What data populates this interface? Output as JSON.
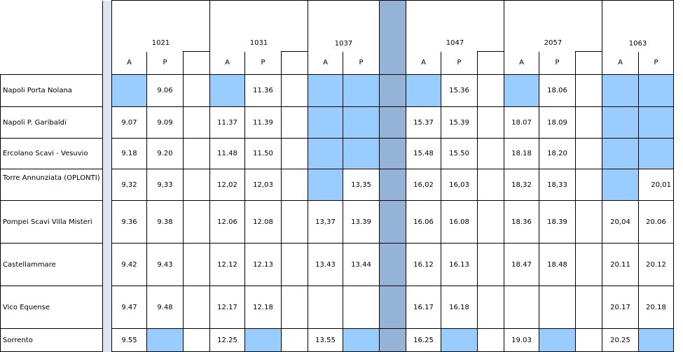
{
  "trains": [
    "1021",
    "1031",
    "1037",
    "1047",
    "2057",
    "1063"
  ],
  "columns": {
    "arrival": "A",
    "departure": "P"
  },
  "rows": [
    {
      "station": "Napoli Porta Nolana",
      "times": [
        [
          "",
          "9.06"
        ],
        [
          "",
          "11.36"
        ],
        [
          "",
          ""
        ],
        [
          "",
          "15.36"
        ],
        [
          "",
          "18.06"
        ],
        [
          "",
          ""
        ]
      ],
      "blue": [
        [
          1,
          0
        ],
        [
          1,
          0
        ],
        [
          1,
          1
        ],
        [
          1,
          0
        ],
        [
          1,
          0
        ],
        [
          1,
          1
        ]
      ]
    },
    {
      "station": "Napoli P. Garibaldi",
      "times": [
        [
          "9.07",
          "9.09"
        ],
        [
          "11.37",
          "11.39"
        ],
        [
          "",
          ""
        ],
        [
          "15.37",
          "15.39"
        ],
        [
          "18.07",
          "18.09"
        ],
        [
          "",
          ""
        ]
      ],
      "blue": [
        [
          0,
          0
        ],
        [
          0,
          0
        ],
        [
          1,
          1
        ],
        [
          0,
          0
        ],
        [
          0,
          0
        ],
        [
          1,
          1
        ]
      ]
    },
    {
      "station": "Ercolano Scavi - Vesuvio",
      "times": [
        [
          "9.18",
          "9.20"
        ],
        [
          "11.48",
          "11.50"
        ],
        [
          "",
          ""
        ],
        [
          "15.48",
          "15.50"
        ],
        [
          "18.18",
          "18.20"
        ],
        [
          "",
          ""
        ]
      ],
      "blue": [
        [
          0,
          0
        ],
        [
          0,
          0
        ],
        [
          1,
          1
        ],
        [
          0,
          0
        ],
        [
          0,
          0
        ],
        [
          1,
          1
        ]
      ]
    },
    {
      "station": "Torre Annunziata (OPLONTI)",
      "times": [
        [
          "9,32",
          "9,33"
        ],
        [
          "12,02",
          "12,03"
        ],
        [
          "",
          "13,35"
        ],
        [
          "16,02",
          "16,03"
        ],
        [
          "18,32",
          "18,33"
        ],
        [
          "",
          "20,01"
        ]
      ],
      "blue": [
        [
          0,
          0
        ],
        [
          0,
          0
        ],
        [
          1,
          0
        ],
        [
          0,
          0
        ],
        [
          0,
          0
        ],
        [
          1,
          0
        ]
      ]
    },
    {
      "station": "Pompei Scavi Villa Misteri",
      "times": [
        [
          "9.36",
          "9.38"
        ],
        [
          "12.06",
          "12.08"
        ],
        [
          "13,37",
          "13.39"
        ],
        [
          "16.06",
          "16.08"
        ],
        [
          "18.36",
          "18.39"
        ],
        [
          "20,04",
          "20.06"
        ]
      ],
      "blue": [
        [
          0,
          0
        ],
        [
          0,
          0
        ],
        [
          0,
          0
        ],
        [
          0,
          0
        ],
        [
          0,
          0
        ],
        [
          0,
          0
        ]
      ]
    },
    {
      "station": "Castellammare",
      "times": [
        [
          "9.42",
          "9.43"
        ],
        [
          "12.12",
          "12.13"
        ],
        [
          "13.43",
          "13.44"
        ],
        [
          "16.12",
          "16.13"
        ],
        [
          "18.47",
          "18.48"
        ],
        [
          "20.11",
          "20.12"
        ]
      ],
      "blue": [
        [
          0,
          0
        ],
        [
          0,
          0
        ],
        [
          0,
          0
        ],
        [
          0,
          0
        ],
        [
          0,
          0
        ],
        [
          0,
          0
        ]
      ]
    },
    {
      "station": "Vico Equense",
      "times": [
        [
          "9.47",
          "9.48"
        ],
        [
          "12.17",
          "12.18"
        ],
        [
          "",
          ""
        ],
        [
          "16.17",
          "16.18"
        ],
        [
          "",
          ""
        ],
        [
          "20.17",
          "20.18"
        ]
      ],
      "blue": [
        [
          0,
          0
        ],
        [
          0,
          0
        ],
        [
          0,
          0
        ],
        [
          0,
          0
        ],
        [
          0,
          0
        ],
        [
          0,
          0
        ]
      ]
    },
    {
      "station": "Sorrento",
      "times": [
        [
          "9.55",
          ""
        ],
        [
          "12.25",
          ""
        ],
        [
          "13.55",
          ""
        ],
        [
          "16.25",
          ""
        ],
        [
          "19.03",
          ""
        ],
        [
          "20.25",
          ""
        ]
      ],
      "blue": [
        [
          0,
          1
        ],
        [
          0,
          1
        ],
        [
          0,
          1
        ],
        [
          0,
          1
        ],
        [
          0,
          1
        ],
        [
          0,
          1
        ]
      ]
    }
  ]
}
